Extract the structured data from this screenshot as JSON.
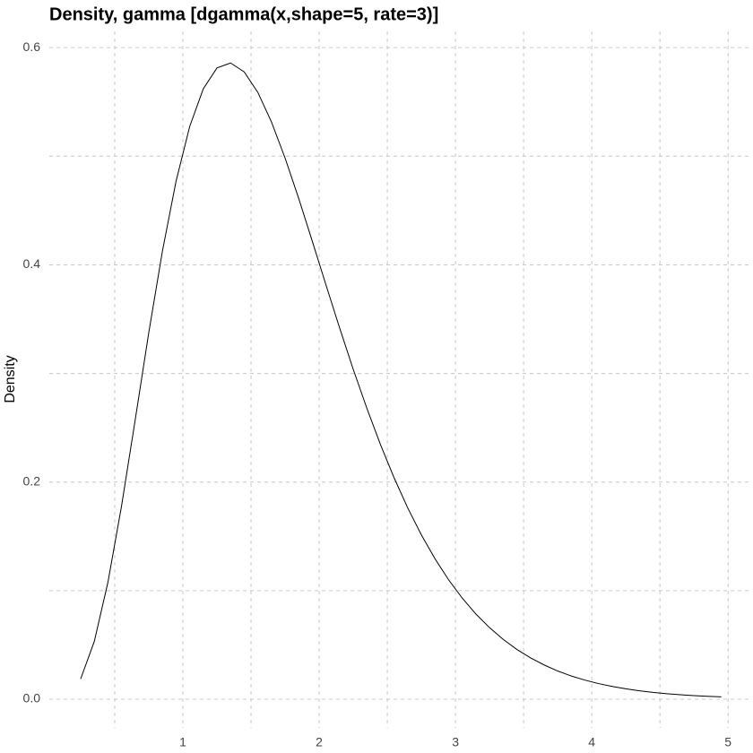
{
  "chart_data": {
    "type": "line",
    "title": "Density, gamma [dgamma(x,shape=5, rate=3)]",
    "y_label": "Density",
    "color": "#000000",
    "x": [
      0.25,
      0.35,
      0.45,
      0.55,
      0.65,
      0.75,
      0.85,
      0.95,
      1.05,
      1.15,
      1.25,
      1.35,
      1.45,
      1.55,
      1.65,
      1.75,
      1.85,
      1.95,
      2.05,
      2.15,
      2.25,
      2.35,
      2.45,
      2.55,
      2.65,
      2.75,
      2.85,
      2.95,
      3.05,
      3.15,
      3.25,
      3.35,
      3.45,
      3.55,
      3.65,
      3.75,
      3.85,
      3.95,
      4.05,
      4.15,
      4.25,
      4.35,
      4.45,
      4.55,
      4.65,
      4.75,
      4.85,
      4.95
    ],
    "values": [
      0.0187,
      0.0532,
      0.1076,
      0.1779,
      0.2571,
      0.3377,
      0.4127,
      0.477,
      0.5274,
      0.5622,
      0.5813,
      0.5859,
      0.5777,
      0.5588,
      0.5316,
      0.4983,
      0.4611,
      0.4216,
      0.3815,
      0.3419,
      0.3038,
      0.2679,
      0.2344,
      0.2038,
      0.1761,
      0.1513,
      0.1293,
      0.1099,
      0.0931,
      0.0784,
      0.0659,
      0.0551,
      0.0459,
      0.0381,
      0.0316,
      0.026,
      0.0214,
      0.0176,
      0.0144,
      0.0118,
      0.0096,
      0.0078,
      0.0063,
      0.0051,
      0.0041,
      0.0033,
      0.0027,
      0.0022
    ],
    "xlim": [
      0.02,
      5.15
    ],
    "ylim": [
      -0.0264,
      0.615
    ],
    "xticks": [
      1,
      2,
      3,
      4,
      5
    ],
    "yticks": [
      {
        "value": 0,
        "label": "0.0"
      },
      0.2,
      0.4,
      0.6
    ],
    "minor_xticks": [
      0.5,
      1.5,
      2.5,
      3.5,
      4.5
    ],
    "minor_yticks": [
      0.1,
      0.3,
      0.5
    ],
    "grid": true
  }
}
